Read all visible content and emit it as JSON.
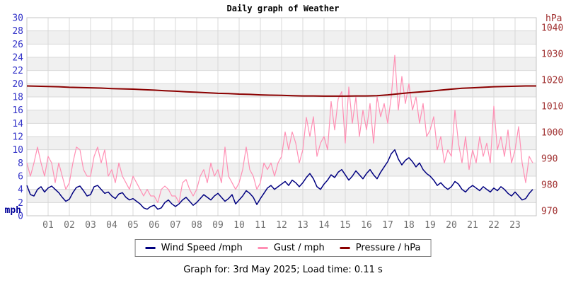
{
  "caption": "Graph for: 3rd May 2025; Load time: 0.11 s",
  "colors": {
    "wind": "#000080",
    "gust": "#ff8fb4",
    "pressure": "#8b0000",
    "left_axis": "#3232c8",
    "left_unit": "#000099",
    "right_axis": "#a03030",
    "x_axis": "#707070",
    "grid": "#d8d8d8",
    "band": "#f0f0f0",
    "border": "#c4c4c4",
    "legend_border": "#808080"
  },
  "chart_data": {
    "type": "line",
    "title": "Daily graph of Weather",
    "grid": true,
    "legend_position": "bottom",
    "left_axis": {
      "label": "mph",
      "min": 0,
      "max": 30,
      "tick_step": 2,
      "ticks": [
        30,
        28,
        26,
        24,
        22,
        20,
        18,
        16,
        14,
        12,
        10,
        8,
        6,
        4,
        2,
        0
      ]
    },
    "right_axis": {
      "label": "hPa",
      "min": 970,
      "max": 1040,
      "tick_step": 10,
      "ticks": [
        1040,
        1030,
        1020,
        1010,
        1000,
        990,
        980,
        970
      ]
    },
    "x_axis": {
      "hours": 24,
      "ticks": [
        "01",
        "02",
        "03",
        "04",
        "05",
        "06",
        "07",
        "08",
        "09",
        "10",
        "11",
        "12",
        "13",
        "14",
        "15",
        "16",
        "17",
        "18",
        "19",
        "20",
        "21",
        "22",
        "23"
      ]
    },
    "series": [
      {
        "name": "Wind Speed /mph",
        "key": "wind",
        "axis": "left",
        "step_hours": 0.1666667,
        "values": [
          4.6,
          3.2,
          3.0,
          4.0,
          4.4,
          3.6,
          4.2,
          4.5,
          4.0,
          3.5,
          2.8,
          2.2,
          2.5,
          3.5,
          4.3,
          4.5,
          3.8,
          3.0,
          3.2,
          4.4,
          4.6,
          4.0,
          3.4,
          3.6,
          3.0,
          2.6,
          3.3,
          3.5,
          2.8,
          2.4,
          2.6,
          2.2,
          1.8,
          1.2,
          1.0,
          1.4,
          1.6,
          1.0,
          1.2,
          2.0,
          2.4,
          1.8,
          1.4,
          1.8,
          2.4,
          2.8,
          2.2,
          1.6,
          2.0,
          2.6,
          3.2,
          2.8,
          2.4,
          3.0,
          3.4,
          2.8,
          2.2,
          2.6,
          3.2,
          1.8,
          2.4,
          3.0,
          3.8,
          3.4,
          2.8,
          1.7,
          2.6,
          3.4,
          4.2,
          4.6,
          4.0,
          4.4,
          4.8,
          5.2,
          4.6,
          5.4,
          5.0,
          4.4,
          5.0,
          5.8,
          6.4,
          5.6,
          4.4,
          4.0,
          4.8,
          5.4,
          6.2,
          5.8,
          6.6,
          7.0,
          6.2,
          5.4,
          6.0,
          6.8,
          6.2,
          5.6,
          6.4,
          7.0,
          6.2,
          5.6,
          6.6,
          7.4,
          8.2,
          9.4,
          10.0,
          8.6,
          7.7,
          8.4,
          8.8,
          8.2,
          7.4,
          8.0,
          7.0,
          6.4,
          6.0,
          5.4,
          4.6,
          5.0,
          4.4,
          4.0,
          4.4,
          5.2,
          4.8,
          4.0,
          3.6,
          4.2,
          4.6,
          4.2,
          3.8,
          4.4,
          4.0,
          3.6,
          4.2,
          3.8,
          4.4,
          4.0,
          3.4,
          3.0,
          3.6,
          3.0,
          2.4,
          2.6,
          3.4,
          4.0
        ]
      },
      {
        "name": "Gust / mph",
        "key": "gust",
        "axis": "left",
        "step_hours": 0.1666667,
        "values": [
          8,
          6,
          8,
          10.4,
          8,
          6,
          9,
          8,
          5,
          8,
          6,
          4,
          5,
          8,
          10.4,
          10,
          7,
          6,
          6,
          9,
          10.4,
          8,
          10,
          6,
          7,
          5,
          8,
          6,
          5,
          4,
          6,
          5,
          4,
          3,
          4,
          3,
          3,
          2,
          4,
          4.5,
          4,
          3,
          3,
          2,
          5,
          5.5,
          4,
          3,
          4,
          6,
          7,
          5,
          8,
          6,
          7,
          5,
          10.4,
          6,
          5,
          4,
          5,
          7,
          10.4,
          7,
          6,
          4,
          5,
          8,
          7,
          8,
          6,
          8,
          9,
          12.7,
          10,
          12.7,
          11,
          8,
          10,
          14.9,
          12,
          15,
          9,
          11,
          12,
          10,
          17.3,
          13,
          17.7,
          18.8,
          11,
          19.5,
          14,
          18,
          12,
          16,
          13,
          17,
          11,
          18,
          15,
          17,
          14,
          18,
          24.3,
          16,
          21.1,
          17,
          20,
          16,
          18,
          14,
          17,
          12,
          13,
          15,
          10,
          12,
          8,
          10,
          9,
          16,
          11,
          8,
          12,
          7,
          10,
          8,
          12,
          9,
          11,
          8,
          16.6,
          10,
          12,
          9,
          13,
          8,
          10,
          13.5,
          8,
          5,
          9,
          8
        ]
      },
      {
        "name": "Pressure / hPa",
        "key": "pressure",
        "axis": "right",
        "step_hours": 0.5,
        "values": [
          1017.7,
          1017.6,
          1017.5,
          1017.4,
          1017.2,
          1017.1,
          1017.0,
          1016.9,
          1016.7,
          1016.6,
          1016.5,
          1016.3,
          1016.1,
          1015.9,
          1015.7,
          1015.5,
          1015.3,
          1015.1,
          1014.9,
          1014.8,
          1014.6,
          1014.5,
          1014.3,
          1014.2,
          1014.1,
          1014.0,
          1013.9,
          1013.9,
          1013.8,
          1013.8,
          1013.8,
          1013.9,
          1013.9,
          1014.0,
          1014.3,
          1014.7,
          1015.1,
          1015.4,
          1015.7,
          1016.1,
          1016.5,
          1016.8,
          1017.0,
          1017.2,
          1017.4,
          1017.5,
          1017.6,
          1017.7,
          1017.7
        ]
      }
    ]
  }
}
